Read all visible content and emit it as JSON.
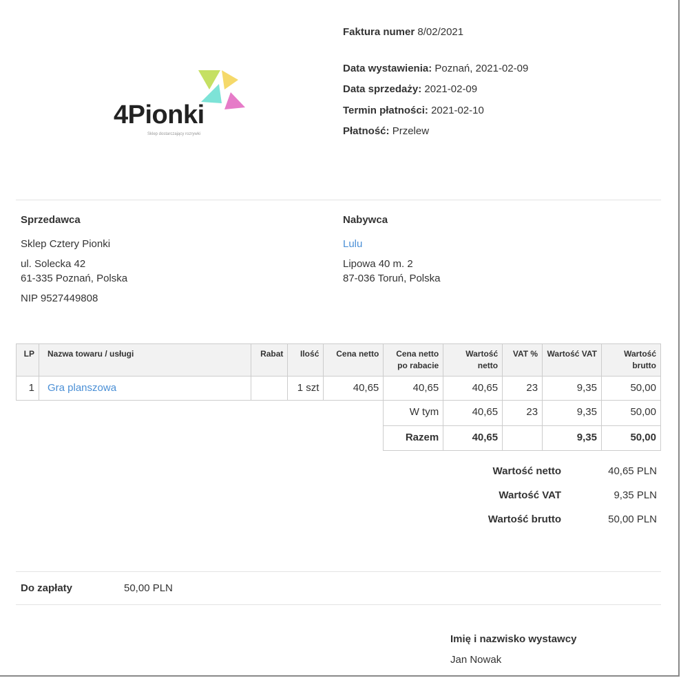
{
  "logo": {
    "text": "4Pionki",
    "tagline": "Sklep dostarczający rozrywki",
    "colors": [
      "#c5e063",
      "#f5d96a",
      "#7de3d7",
      "#e67bc8"
    ]
  },
  "header": {
    "invoice_label": "Faktura numer",
    "invoice_number": "8/02/2021",
    "issue_label": "Data wystawienia:",
    "issue_value": "Poznań, 2021-02-09",
    "sale_label": "Data sprzedaży:",
    "sale_value": "2021-02-09",
    "due_label": "Termin płatności:",
    "due_value": "2021-02-10",
    "payment_label": "Płatność:",
    "payment_value": "Przelew"
  },
  "seller": {
    "title": "Sprzedawca",
    "name": "Sklep Cztery Pionki",
    "street": "ul. Solecka 42",
    "city": "61-335 Poznań, Polska",
    "nip": "NIP 9527449808"
  },
  "buyer": {
    "title": "Nabywca",
    "name": "Lulu",
    "street": "Lipowa 40 m. 2",
    "city": "87-036 Toruń, Polska"
  },
  "table": {
    "headers": [
      "LP",
      "Nazwa towaru / usługi",
      "Rabat",
      "Ilość",
      "Cena netto",
      "Cena netto po rabacie",
      "Wartość netto",
      "VAT %",
      "Wartość VAT",
      "Wartość brutto"
    ],
    "rows": [
      {
        "lp": "1",
        "name": "Gra planszowa",
        "rabat": "",
        "qty": "1 szt",
        "price": "40,65",
        "price_after": "40,65",
        "net": "40,65",
        "vat_rate": "23",
        "vat": "9,35",
        "gross": "50,00"
      }
    ],
    "breakdown": {
      "label": "W tym",
      "net": "40,65",
      "vat_rate": "23",
      "vat": "9,35",
      "gross": "50,00"
    },
    "total": {
      "label": "Razem",
      "net": "40,65",
      "vat": "9,35",
      "gross": "50,00"
    }
  },
  "summary": {
    "net_label": "Wartość netto",
    "net": "40,65 PLN",
    "vat_label": "Wartość VAT",
    "vat": "9,35 PLN",
    "gross_label": "Wartość brutto",
    "gross": "50,00 PLN"
  },
  "to_pay": {
    "label": "Do zapłaty",
    "value": "50,00 PLN"
  },
  "issuer": {
    "label": "Imię i nazwisko wystawcy",
    "name": "Jan Nowak"
  }
}
